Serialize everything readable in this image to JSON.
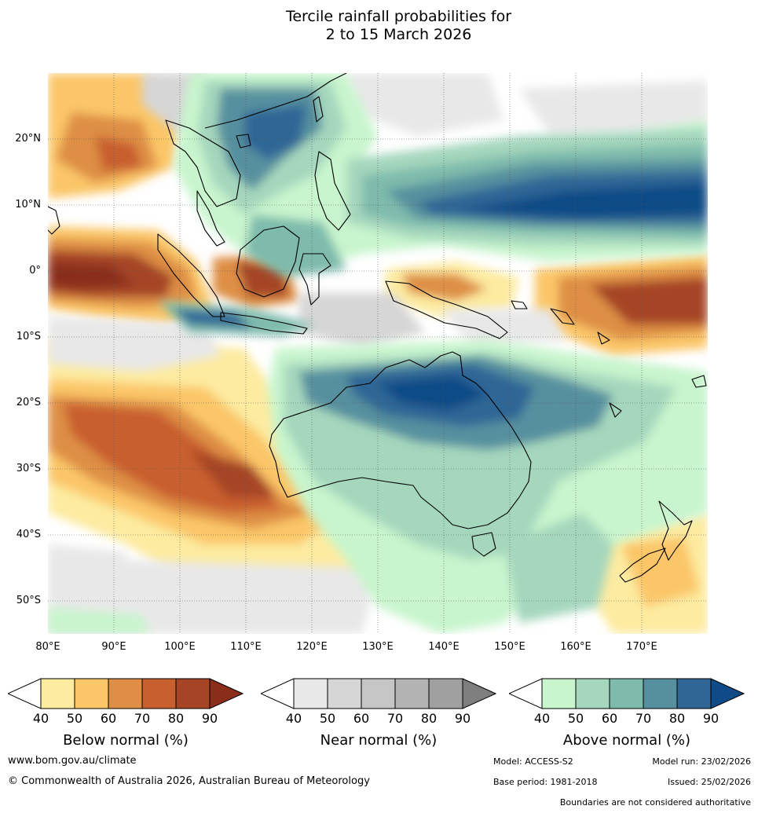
{
  "title_line1": "Tercile rainfall probabilities for",
  "title_line2": "2 to 15 March 2026",
  "axis": {
    "lat_labels": [
      "20°N",
      "10°N",
      "0°",
      "10°S",
      "20°S",
      "30°S",
      "40°S",
      "50°S"
    ],
    "lon_labels": [
      "80°E",
      "90°E",
      "100°E",
      "110°E",
      "120°E",
      "130°E",
      "140°E",
      "150°E",
      "160°E",
      "170°E"
    ]
  },
  "legends": {
    "below": {
      "title": "Below normal (%)",
      "ticks": [
        "40",
        "50",
        "60",
        "70",
        "80",
        "90"
      ],
      "colors": [
        "#ffffff",
        "#fdeba0",
        "#fbc667",
        "#de8f45",
        "#c85f2e",
        "#a54526",
        "#8a2d1a"
      ]
    },
    "near": {
      "title": "Near normal (%)",
      "ticks": [
        "40",
        "50",
        "60",
        "70",
        "80",
        "90"
      ],
      "colors": [
        "#ffffff",
        "#e8e8e8",
        "#d6d6d6",
        "#c6c6c6",
        "#b3b3b3",
        "#a0a0a0",
        "#7e7e7e"
      ]
    },
    "above": {
      "title": "Above normal (%)",
      "ticks": [
        "40",
        "50",
        "60",
        "70",
        "80",
        "90"
      ],
      "colors": [
        "#ffffff",
        "#c8f5cd",
        "#a5d7bd",
        "#7ebbac",
        "#56909f",
        "#2f6696",
        "#0f4b86"
      ]
    }
  },
  "footer": {
    "website": "www.bom.gov.au/climate",
    "copyright": "© Commonwealth of Australia 2026, Australian Bureau of Meteorology",
    "model": "Model: ACCESS-S2",
    "model_run": "Model run: 23/02/2026",
    "base_period": "Base period: 1981-2018",
    "issued": "Issued: 25/02/2026",
    "disclaimer": "Boundaries are not considered authoritative"
  }
}
